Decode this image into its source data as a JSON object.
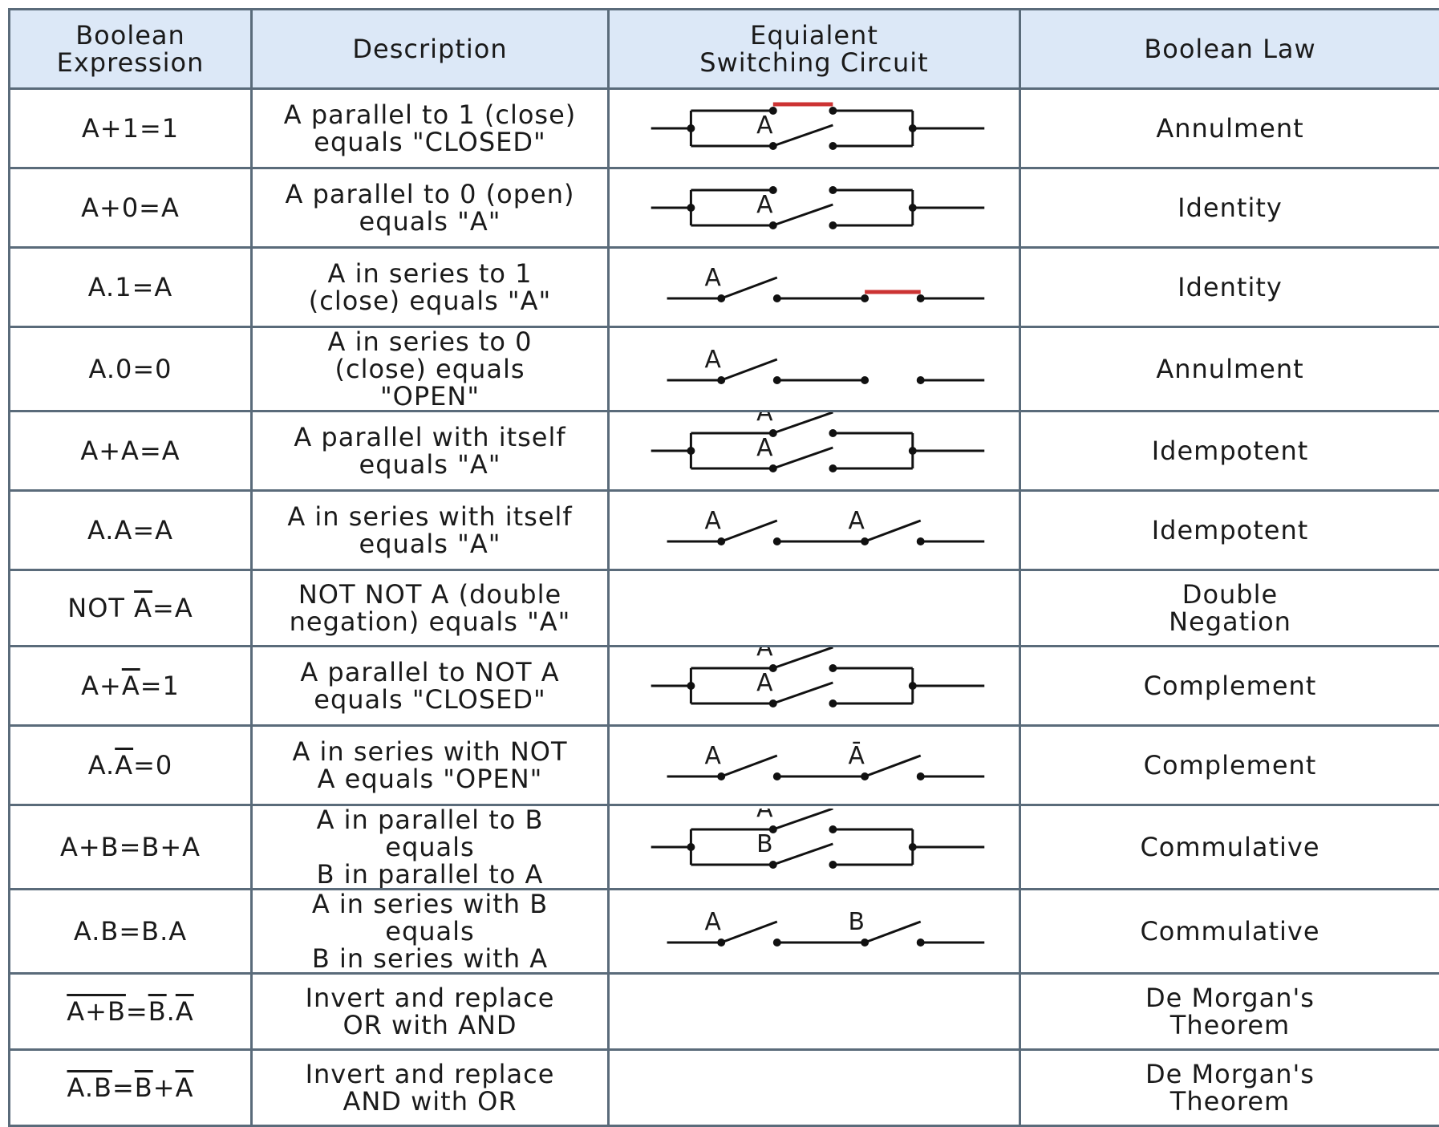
{
  "headers": {
    "expression": [
      "Boolean",
      "Expression"
    ],
    "description": "Description",
    "circuit": [
      "Equialent",
      "Switching Circuit"
    ],
    "law": "Boolean Law"
  },
  "colors": {
    "header_bg": "#dce8f7",
    "border": "#5a6b7a",
    "wire": "#111111",
    "closed_link": "#cc3333"
  },
  "rows": [
    {
      "expr": [
        {
          "t": "A+1=1"
        }
      ],
      "desc": [
        "A parallel to 1 (close)",
        "equals \"CLOSED\""
      ],
      "circuit": {
        "type": "parallel",
        "top": "closed",
        "bottom": "A"
      },
      "law": [
        "Annulment"
      ]
    },
    {
      "expr": [
        {
          "t": "A+0=A"
        }
      ],
      "desc": [
        "A parallel to 0 (open)",
        "equals \"A\""
      ],
      "circuit": {
        "type": "parallel",
        "top": "open",
        "bottom": "A"
      },
      "law": [
        "Identity"
      ]
    },
    {
      "expr": [
        {
          "t": "A.1=A"
        }
      ],
      "desc": [
        "A in series to 1",
        "(close) equals \"A\""
      ],
      "circuit": {
        "type": "series",
        "first": "A",
        "second": "closed"
      },
      "law": [
        "Identity"
      ]
    },
    {
      "expr": [
        {
          "t": "A.0=0"
        }
      ],
      "desc": [
        "A in series to 0",
        "(close) equals",
        "\"OPEN\""
      ],
      "circuit": {
        "type": "series",
        "first": "A",
        "second": "open"
      },
      "law": [
        "Annulment"
      ]
    },
    {
      "expr": [
        {
          "t": "A+A=A"
        }
      ],
      "desc": [
        "A parallel with itself",
        "equals \"A\""
      ],
      "circuit": {
        "type": "parallel",
        "top": "A",
        "bottom": "A"
      },
      "law": [
        "Idempotent"
      ]
    },
    {
      "expr": [
        {
          "t": "A.A=A"
        }
      ],
      "desc": [
        "A in series with itself",
        "equals \"A\""
      ],
      "circuit": {
        "type": "series",
        "first": "A",
        "second": "A"
      },
      "law": [
        "Idempotent"
      ]
    },
    {
      "expr": [
        {
          "t": "NOT "
        },
        {
          "t": "A",
          "ov": true
        },
        {
          "t": "=A"
        }
      ],
      "desc": [
        "NOT NOT A (double",
        "negation) equals \"A\""
      ],
      "circuit": null,
      "law": [
        "Double",
        "Negation"
      ]
    },
    {
      "expr": [
        {
          "t": "A+"
        },
        {
          "t": "A",
          "ov": true
        },
        {
          "t": "=1"
        }
      ],
      "desc": [
        "A parallel to NOT A",
        "equals \"CLOSED\""
      ],
      "circuit": {
        "type": "parallel",
        "top": "Ā",
        "bottom": "A"
      },
      "law": [
        "Complement"
      ]
    },
    {
      "expr": [
        {
          "t": "A."
        },
        {
          "t": "A",
          "ov": true
        },
        {
          "t": "=0"
        }
      ],
      "desc": [
        "A in series with NOT",
        "A equals \"OPEN\""
      ],
      "circuit": {
        "type": "series",
        "first": "A",
        "second": "Ā"
      },
      "law": [
        "Complement"
      ]
    },
    {
      "expr": [
        {
          "t": "A+B=B+A"
        }
      ],
      "desc": [
        "A in parallel to B",
        "equals",
        "B in parallel to A"
      ],
      "circuit": {
        "type": "parallel",
        "top": "A",
        "bottom": "B"
      },
      "law": [
        "Commulative"
      ]
    },
    {
      "expr": [
        {
          "t": "A.B=B.A"
        }
      ],
      "desc": [
        "A in series with B",
        "equals",
        "B in series with A"
      ],
      "circuit": {
        "type": "series",
        "first": "A",
        "second": "B"
      },
      "law": [
        "Commulative"
      ]
    },
    {
      "expr": [
        {
          "t": "A+B",
          "ov": true
        },
        {
          "t": "="
        },
        {
          "t": "B",
          "ov": true
        },
        {
          "t": "."
        },
        {
          "t": "A",
          "ov": true
        }
      ],
      "desc": [
        "Invert and replace",
        "OR with AND"
      ],
      "circuit": null,
      "law": [
        "De Morgan's",
        "Theorem"
      ]
    },
    {
      "expr": [
        {
          "t": "A.B",
          "ov": true
        },
        {
          "t": "="
        },
        {
          "t": "B",
          "ov": true
        },
        {
          "t": "+"
        },
        {
          "t": "A",
          "ov": true
        }
      ],
      "desc": [
        "Invert and replace",
        "AND with OR"
      ],
      "circuit": null,
      "law": [
        "De Morgan's",
        "Theorem"
      ]
    }
  ]
}
